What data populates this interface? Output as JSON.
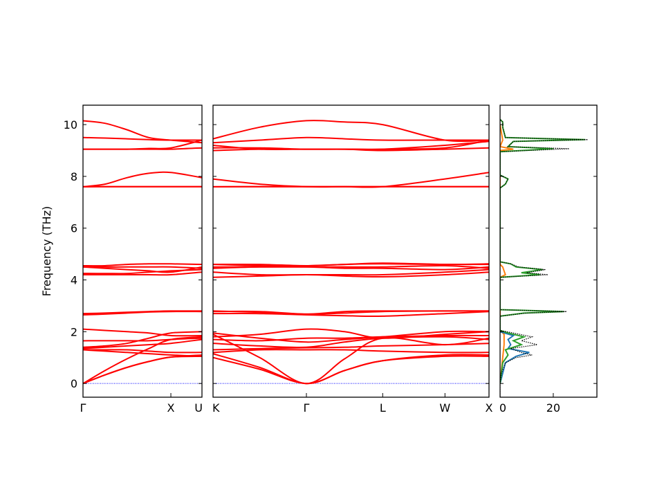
{
  "chart_data": {
    "type": "line",
    "ylabel": "Frequency (THz)",
    "ylim": [
      -0.53,
      10.75
    ],
    "yticks": [
      0,
      2,
      4,
      6,
      8,
      10
    ],
    "band_color": "#ff0000",
    "zero_line_color": "#0000ff",
    "panels": [
      {
        "name": "band-panel-1",
        "xlim": [
          0,
          1.354
        ],
        "ticks": [
          {
            "x": 0,
            "label": "Γ"
          },
          {
            "x": 1.0,
            "label": "X"
          },
          {
            "x": 1.354,
            "label": "U"
          }
        ],
        "x": [
          0,
          0.25,
          0.5,
          0.75,
          1.0,
          1.354
        ],
        "bands": [
          [
            0,
            0.33,
            0.62,
            0.85,
            1.02,
            1.05
          ],
          [
            0,
            0.33,
            0.62,
            0.85,
            1.02,
            1.1
          ],
          [
            0,
            0.5,
            0.95,
            1.35,
            1.7,
            1.8
          ],
          [
            1.3,
            1.25,
            1.2,
            1.15,
            1.1,
            1.05
          ],
          [
            1.3,
            1.3,
            1.3,
            1.25,
            1.2,
            1.2
          ],
          [
            1.35,
            1.4,
            1.45,
            1.5,
            1.55,
            1.7
          ],
          [
            1.4,
            1.45,
            1.55,
            1.75,
            1.95,
            2.0
          ],
          [
            1.65,
            1.65,
            1.65,
            1.65,
            1.7,
            1.75
          ],
          [
            2.1,
            2.05,
            2.0,
            1.95,
            1.85,
            1.85
          ],
          [
            2.65,
            2.68,
            2.72,
            2.76,
            2.78,
            2.78
          ],
          [
            2.7,
            2.72,
            2.75,
            2.78,
            2.8,
            2.8
          ],
          [
            4.2,
            4.2,
            4.2,
            4.2,
            4.2,
            4.3
          ],
          [
            4.25,
            4.25,
            4.25,
            4.3,
            4.35,
            4.4
          ],
          [
            4.5,
            4.45,
            4.4,
            4.35,
            4.3,
            4.5
          ],
          [
            4.55,
            4.55,
            4.6,
            4.62,
            4.62,
            4.6
          ],
          [
            4.55,
            4.5,
            4.5,
            4.5,
            4.5,
            4.45
          ],
          [
            7.6,
            7.6,
            7.6,
            7.6,
            7.6,
            7.6
          ],
          [
            7.6,
            7.6,
            7.6,
            7.6,
            7.6,
            7.6
          ],
          [
            7.6,
            7.7,
            7.95,
            8.12,
            8.15,
            7.95
          ],
          [
            9.05,
            9.05,
            9.05,
            9.05,
            9.05,
            9.1
          ],
          [
            9.05,
            9.05,
            9.05,
            9.08,
            9.1,
            9.4
          ],
          [
            9.5,
            9.48,
            9.45,
            9.42,
            9.4,
            9.4
          ],
          [
            10.15,
            10.05,
            9.8,
            9.5,
            9.4,
            9.3
          ]
        ]
      },
      {
        "name": "band-panel-2",
        "xlim": [
          1.354,
          4.487
        ],
        "ticks": [
          {
            "x": 1.354,
            "label": "K"
          },
          {
            "x": 2.414,
            "label": "Γ"
          },
          {
            "x": 3.28,
            "label": "L"
          },
          {
            "x": 3.987,
            "label": "W"
          },
          {
            "x": 4.487,
            "label": "X"
          }
        ],
        "x": [
          1.354,
          1.884,
          2.414,
          2.847,
          3.28,
          3.987,
          4.487
        ],
        "bands": [
          [
            1.0,
            0.55,
            0,
            0.5,
            0.88,
            1.05,
            1.05
          ],
          [
            1.15,
            0.62,
            0,
            0.5,
            0.88,
            1.1,
            1.1
          ],
          [
            1.9,
            1.0,
            0,
            0.95,
            1.75,
            1.5,
            1.75
          ],
          [
            1.2,
            1.3,
            1.3,
            1.3,
            1.25,
            1.2,
            1.2
          ],
          [
            1.3,
            1.35,
            1.38,
            1.4,
            1.45,
            1.5,
            1.55
          ],
          [
            1.55,
            1.45,
            1.4,
            1.6,
            1.75,
            1.8,
            1.7
          ],
          [
            1.7,
            1.65,
            1.75,
            1.75,
            1.8,
            1.85,
            1.85
          ],
          [
            1.8,
            1.9,
            2.1,
            2.0,
            1.75,
            1.9,
            2.0
          ],
          [
            1.95,
            1.75,
            1.6,
            1.7,
            1.8,
            2.0,
            2.0
          ],
          [
            2.7,
            2.7,
            2.65,
            2.62,
            2.6,
            2.7,
            2.78
          ],
          [
            2.8,
            2.75,
            2.68,
            2.72,
            2.78,
            2.8,
            2.8
          ],
          [
            2.78,
            2.78,
            2.68,
            2.78,
            2.8,
            2.8,
            2.8
          ],
          [
            4.1,
            4.15,
            4.2,
            4.15,
            4.12,
            4.2,
            4.3
          ],
          [
            4.3,
            4.2,
            4.2,
            4.2,
            4.2,
            4.3,
            4.4
          ],
          [
            4.45,
            4.5,
            4.5,
            4.45,
            4.45,
            4.4,
            4.5
          ],
          [
            4.5,
            4.5,
            4.5,
            4.5,
            4.5,
            4.55,
            4.45
          ],
          [
            4.6,
            4.55,
            4.55,
            4.6,
            4.62,
            4.6,
            4.6
          ],
          [
            4.6,
            4.6,
            4.55,
            4.6,
            4.65,
            4.6,
            4.62
          ],
          [
            7.6,
            7.6,
            7.6,
            7.6,
            7.6,
            7.6,
            7.6
          ],
          [
            7.6,
            7.6,
            7.6,
            7.6,
            7.6,
            7.6,
            7.6
          ],
          [
            7.9,
            7.7,
            7.6,
            7.6,
            7.6,
            7.9,
            8.15
          ],
          [
            9.0,
            9.05,
            9.05,
            9.05,
            9.05,
            9.2,
            9.35
          ],
          [
            9.1,
            9.1,
            9.05,
            9.05,
            9.0,
            9.05,
            9.1
          ],
          [
            9.2,
            9.05,
            9.05,
            9.05,
            9.05,
            9.1,
            9.4
          ],
          [
            9.3,
            9.4,
            9.5,
            9.45,
            9.4,
            9.4,
            9.4
          ],
          [
            9.45,
            9.9,
            10.15,
            10.1,
            10.0,
            9.4,
            9.4
          ]
        ]
      }
    ],
    "dos": {
      "xlim": [
        0,
        36.4
      ],
      "xticks": [
        0,
        20
      ],
      "series": [
        {
          "name": "total",
          "color": "#000000",
          "dashed": true,
          "points": [
            [
              -0.5,
              0
            ],
            [
              0,
              0
            ],
            [
              0.4,
              0.5
            ],
            [
              0.8,
              2
            ],
            [
              1.0,
              6
            ],
            [
              1.1,
              12
            ],
            [
              1.2,
              8
            ],
            [
              1.35,
              4
            ],
            [
              1.5,
              14
            ],
            [
              1.65,
              8
            ],
            [
              1.8,
              12
            ],
            [
              1.95,
              5
            ],
            [
              2.05,
              0
            ],
            [
              2.6,
              0
            ],
            [
              2.72,
              10
            ],
            [
              2.78,
              25
            ],
            [
              2.85,
              0
            ],
            [
              4.1,
              0
            ],
            [
              4.2,
              18
            ],
            [
              4.28,
              10
            ],
            [
              4.4,
              17
            ],
            [
              4.5,
              7
            ],
            [
              4.62,
              4
            ],
            [
              4.7,
              0
            ],
            [
              7.55,
              0
            ],
            [
              7.7,
              2
            ],
            [
              7.9,
              3
            ],
            [
              8.05,
              0
            ],
            [
              8.95,
              0
            ],
            [
              9.07,
              26
            ],
            [
              9.15,
              3
            ],
            [
              9.35,
              5
            ],
            [
              9.42,
              33
            ],
            [
              9.5,
              2
            ],
            [
              9.9,
              1
            ],
            [
              10.1,
              1
            ],
            [
              10.2,
              0
            ]
          ]
        },
        {
          "name": "green",
          "color": "#2ca02c",
          "dashed": false,
          "points": [
            [
              0,
              0
            ],
            [
              0.8,
              1
            ],
            [
              1.1,
              3
            ],
            [
              1.3,
              2
            ],
            [
              1.5,
              8
            ],
            [
              1.65,
              5
            ],
            [
              1.8,
              9
            ],
            [
              1.95,
              3
            ],
            [
              2.05,
              0
            ],
            [
              2.6,
              0
            ],
            [
              2.72,
              9
            ],
            [
              2.78,
              24
            ],
            [
              2.85,
              0
            ],
            [
              4.1,
              0
            ],
            [
              4.2,
              15
            ],
            [
              4.28,
              8
            ],
            [
              4.4,
              16
            ],
            [
              4.5,
              6
            ],
            [
              4.62,
              4
            ],
            [
              4.7,
              0
            ],
            [
              7.55,
              0
            ],
            [
              7.7,
              2
            ],
            [
              7.9,
              3
            ],
            [
              8.05,
              0
            ],
            [
              8.95,
              0
            ],
            [
              9.07,
              20
            ],
            [
              9.15,
              3
            ],
            [
              9.35,
              5
            ],
            [
              9.42,
              32
            ],
            [
              9.5,
              2
            ],
            [
              9.9,
              1
            ],
            [
              10.1,
              1
            ],
            [
              10.2,
              0
            ]
          ]
        },
        {
          "name": "blue",
          "color": "#1f77b4",
          "dashed": false,
          "points": [
            [
              0,
              0
            ],
            [
              0.8,
              2
            ],
            [
              1.05,
              6
            ],
            [
              1.2,
              11
            ],
            [
              1.35,
              3
            ],
            [
              1.5,
              4
            ],
            [
              1.7,
              3
            ],
            [
              1.85,
              5
            ],
            [
              2.0,
              0
            ]
          ]
        },
        {
          "name": "orange",
          "color": "#ff7f0e",
          "dashed": false,
          "points": [
            [
              0,
              0
            ],
            [
              1.0,
              1
            ],
            [
              1.5,
              1.5
            ],
            [
              1.9,
              1.5
            ],
            [
              2.05,
              0
            ],
            [
              4.1,
              0
            ],
            [
              4.2,
              2
            ],
            [
              4.5,
              1
            ],
            [
              4.6,
              0
            ],
            [
              9.0,
              0
            ],
            [
              9.05,
              5
            ],
            [
              9.15,
              0
            ],
            [
              9.4,
              1
            ],
            [
              10,
              0
            ]
          ]
        }
      ]
    }
  }
}
